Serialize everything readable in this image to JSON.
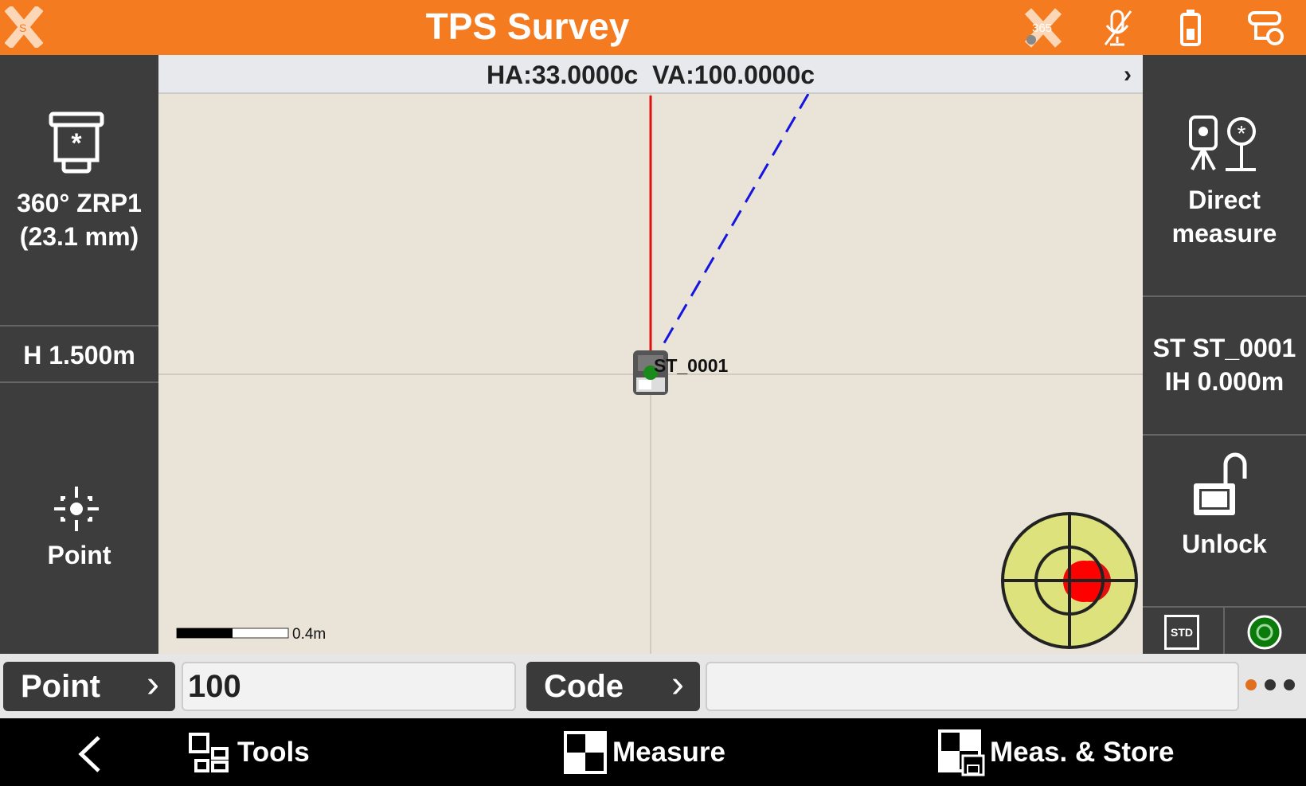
{
  "header": {
    "title": "TPS Survey",
    "icons": [
      "app-logo-icon",
      "x365-status-icon",
      "mic-off-icon",
      "battery-icon",
      "instrument-connection-icon"
    ],
    "accent": "#f47b20"
  },
  "left_panel": {
    "prism_name": "360° ZRP1",
    "prism_constant": "(23.1 mm)",
    "target_height": "H 1.500m",
    "point_label": "Point"
  },
  "info_bar": {
    "angles": "HA:33.0000c  VA:100.0000c"
  },
  "map": {
    "station_label": "ST_0001",
    "scale_label": "0.4m"
  },
  "right_panel": {
    "measure_mode_line1": "Direct",
    "measure_mode_line2": "measure",
    "station_line1": "ST ST_0001",
    "station_line2": "IH 0.000m",
    "lock_label": "Unlock",
    "std_label": "STD"
  },
  "bottom_bar": {
    "point_button": "Point",
    "point_value": "100",
    "code_button": "Code",
    "code_value": ""
  },
  "nav": {
    "tools": "Tools",
    "measure": "Measure",
    "meas_store": "Meas. & Store"
  }
}
